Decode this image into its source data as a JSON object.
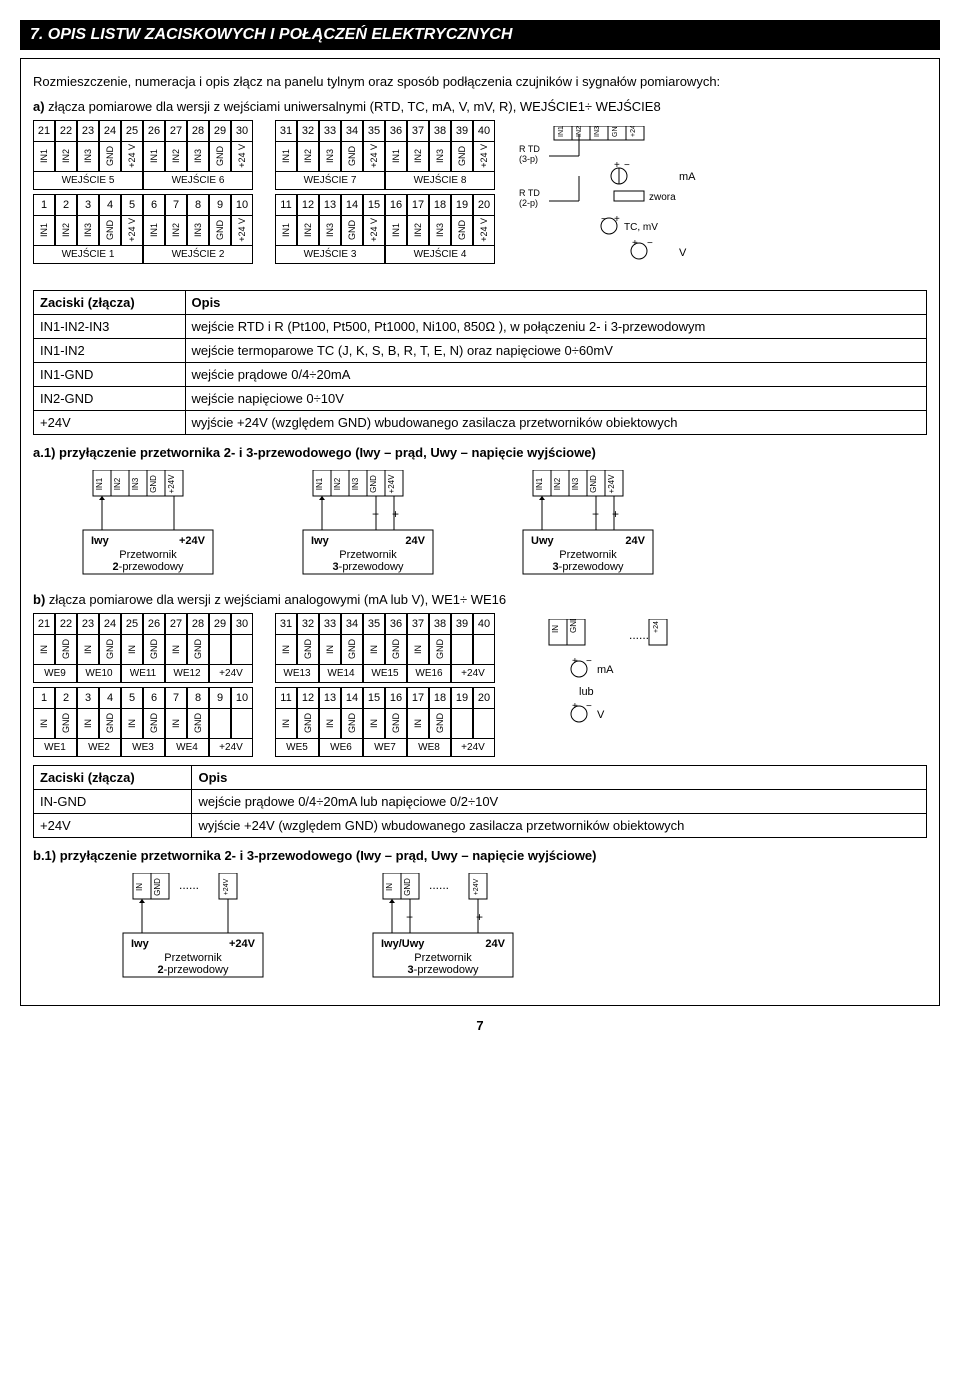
{
  "header": "7. OPIS LISTW ZACISKOWYCH I POŁĄCZEŃ ELEKTRYCZNYCH",
  "intro": "Rozmieszczenie, numeracja i opis złącz na panelu tylnym oraz sposób podłączenia czujników i sygnałów pomiarowych:",
  "a_label": "a)",
  "a_text": " złącza pomiarowe dla wersji z wejściami uniwersalnymi  (RTD, TC, mA, V, mV, R), WEJŚCIE1÷ WEJŚCIE8",
  "pins": [
    "IN1",
    "IN2",
    "IN3",
    "GND",
    "+24 V"
  ],
  "wej": [
    "WEJŚCIE 1",
    "WEJŚCIE 2",
    "WEJŚCIE 3",
    "WEJŚCIE 4",
    "WEJŚCIE 5",
    "WEJŚCIE 6",
    "WEJŚCIE 7",
    "WEJŚCIE 8"
  ],
  "row1": [
    "21",
    "22",
    "23",
    "24",
    "25",
    "26",
    "27",
    "28",
    "29",
    "30"
  ],
  "row1b": [
    "31",
    "32",
    "33",
    "34",
    "35",
    "36",
    "37",
    "38",
    "39",
    "40"
  ],
  "row2": [
    "1",
    "2",
    "3",
    "4",
    "5",
    "6",
    "7",
    "8",
    "9",
    "10"
  ],
  "row2b": [
    "11",
    "12",
    "13",
    "14",
    "15",
    "16",
    "17",
    "18",
    "19",
    "20"
  ],
  "rtd3": "R TD (3-p)",
  "rtd2": "R TD (2-p)",
  "zwora": "zwora",
  "tcmv": "TC, mV",
  "ma": "mA",
  "v": "V",
  "table1": {
    "head": [
      "Zaciski (złącza)",
      "Opis"
    ],
    "rows": [
      [
        "IN1-IN2-IN3",
        "wejście RTD i R (Pt100, Pt500, Pt1000, Ni100, 850Ω ), w połączeniu 2- i 3-przewodowym"
      ],
      [
        "IN1-IN2",
        "wejście termoparowe TC (J, K, S, B, R, T, E, N) oraz napięciowe 0÷60mV"
      ],
      [
        "IN1-GND",
        "wejście prądowe 0/4÷20mA"
      ],
      [
        "IN2-GND",
        "wejście napięciowe 0÷10V"
      ],
      [
        "+24V",
        "wyjście +24V (względem GND) wbudowanego zasilacza przetworników obiektowych"
      ]
    ]
  },
  "a1": "a.1) przyłączenie przetwornika 2- i 3-przewodowego (Iwy – prąd, Uwy – napięcie wyjściowe)",
  "p2": {
    "i": "Iwy",
    "v": "+24V",
    "t": "Przetwornik",
    "w": "2-przewodowy"
  },
  "p3a": {
    "i": "Iwy",
    "v": "24V",
    "t": "Przetwornik",
    "w": "3-przewodowy"
  },
  "p3b": {
    "i": "Uwy",
    "v": "24V",
    "t": "Przetwornik",
    "w": "3-przewodowy"
  },
  "b_label": "b)",
  "b_text": " złącza pomiarowe dla wersji z wejściami analogowymi  (mA lub V), WE1÷ WE16",
  "pins_b": [
    "IN",
    "GND"
  ],
  "we_top": [
    "WE9",
    "WE10",
    "WE11",
    "WE12",
    "+24V",
    "WE13",
    "WE14",
    "WE15",
    "WE16",
    "+24V"
  ],
  "we_bot": [
    "WE1",
    "WE2",
    "WE3",
    "WE4",
    "+24V",
    "WE5",
    "WE6",
    "WE7",
    "WE8",
    "+24V"
  ],
  "lub": "lub",
  "table2": {
    "head": [
      "Zaciski (złącza)",
      "Opis"
    ],
    "rows": [
      [
        "IN-GND",
        "wejście prądowe 0/4÷20mA lub napięciowe 0/2÷10V"
      ],
      [
        "+24V",
        "wyjście +24V (względem GND) wbudowanego zasilacza przetworników obiektowych"
      ]
    ]
  },
  "b1": "b.1) przyłączenie przetwornika 2- i 3-przewodowego (Iwy – prąd, Uwy – napięcie wyjściowe)",
  "pb2": {
    "i": "Iwy",
    "v": "+24V",
    "t": "Przetwornik",
    "w": "2-przewodowy"
  },
  "pb3": {
    "i": "Iwy/Uwy",
    "v": "24V",
    "t": "Przetwornik",
    "w": "3-przewodowy"
  },
  "page": "7",
  "pins_a1": [
    "IN1",
    "IN2",
    "IN3",
    "GND",
    "+24V"
  ],
  "colors": {
    "bg": "#ffffff",
    "fg": "#000000"
  }
}
